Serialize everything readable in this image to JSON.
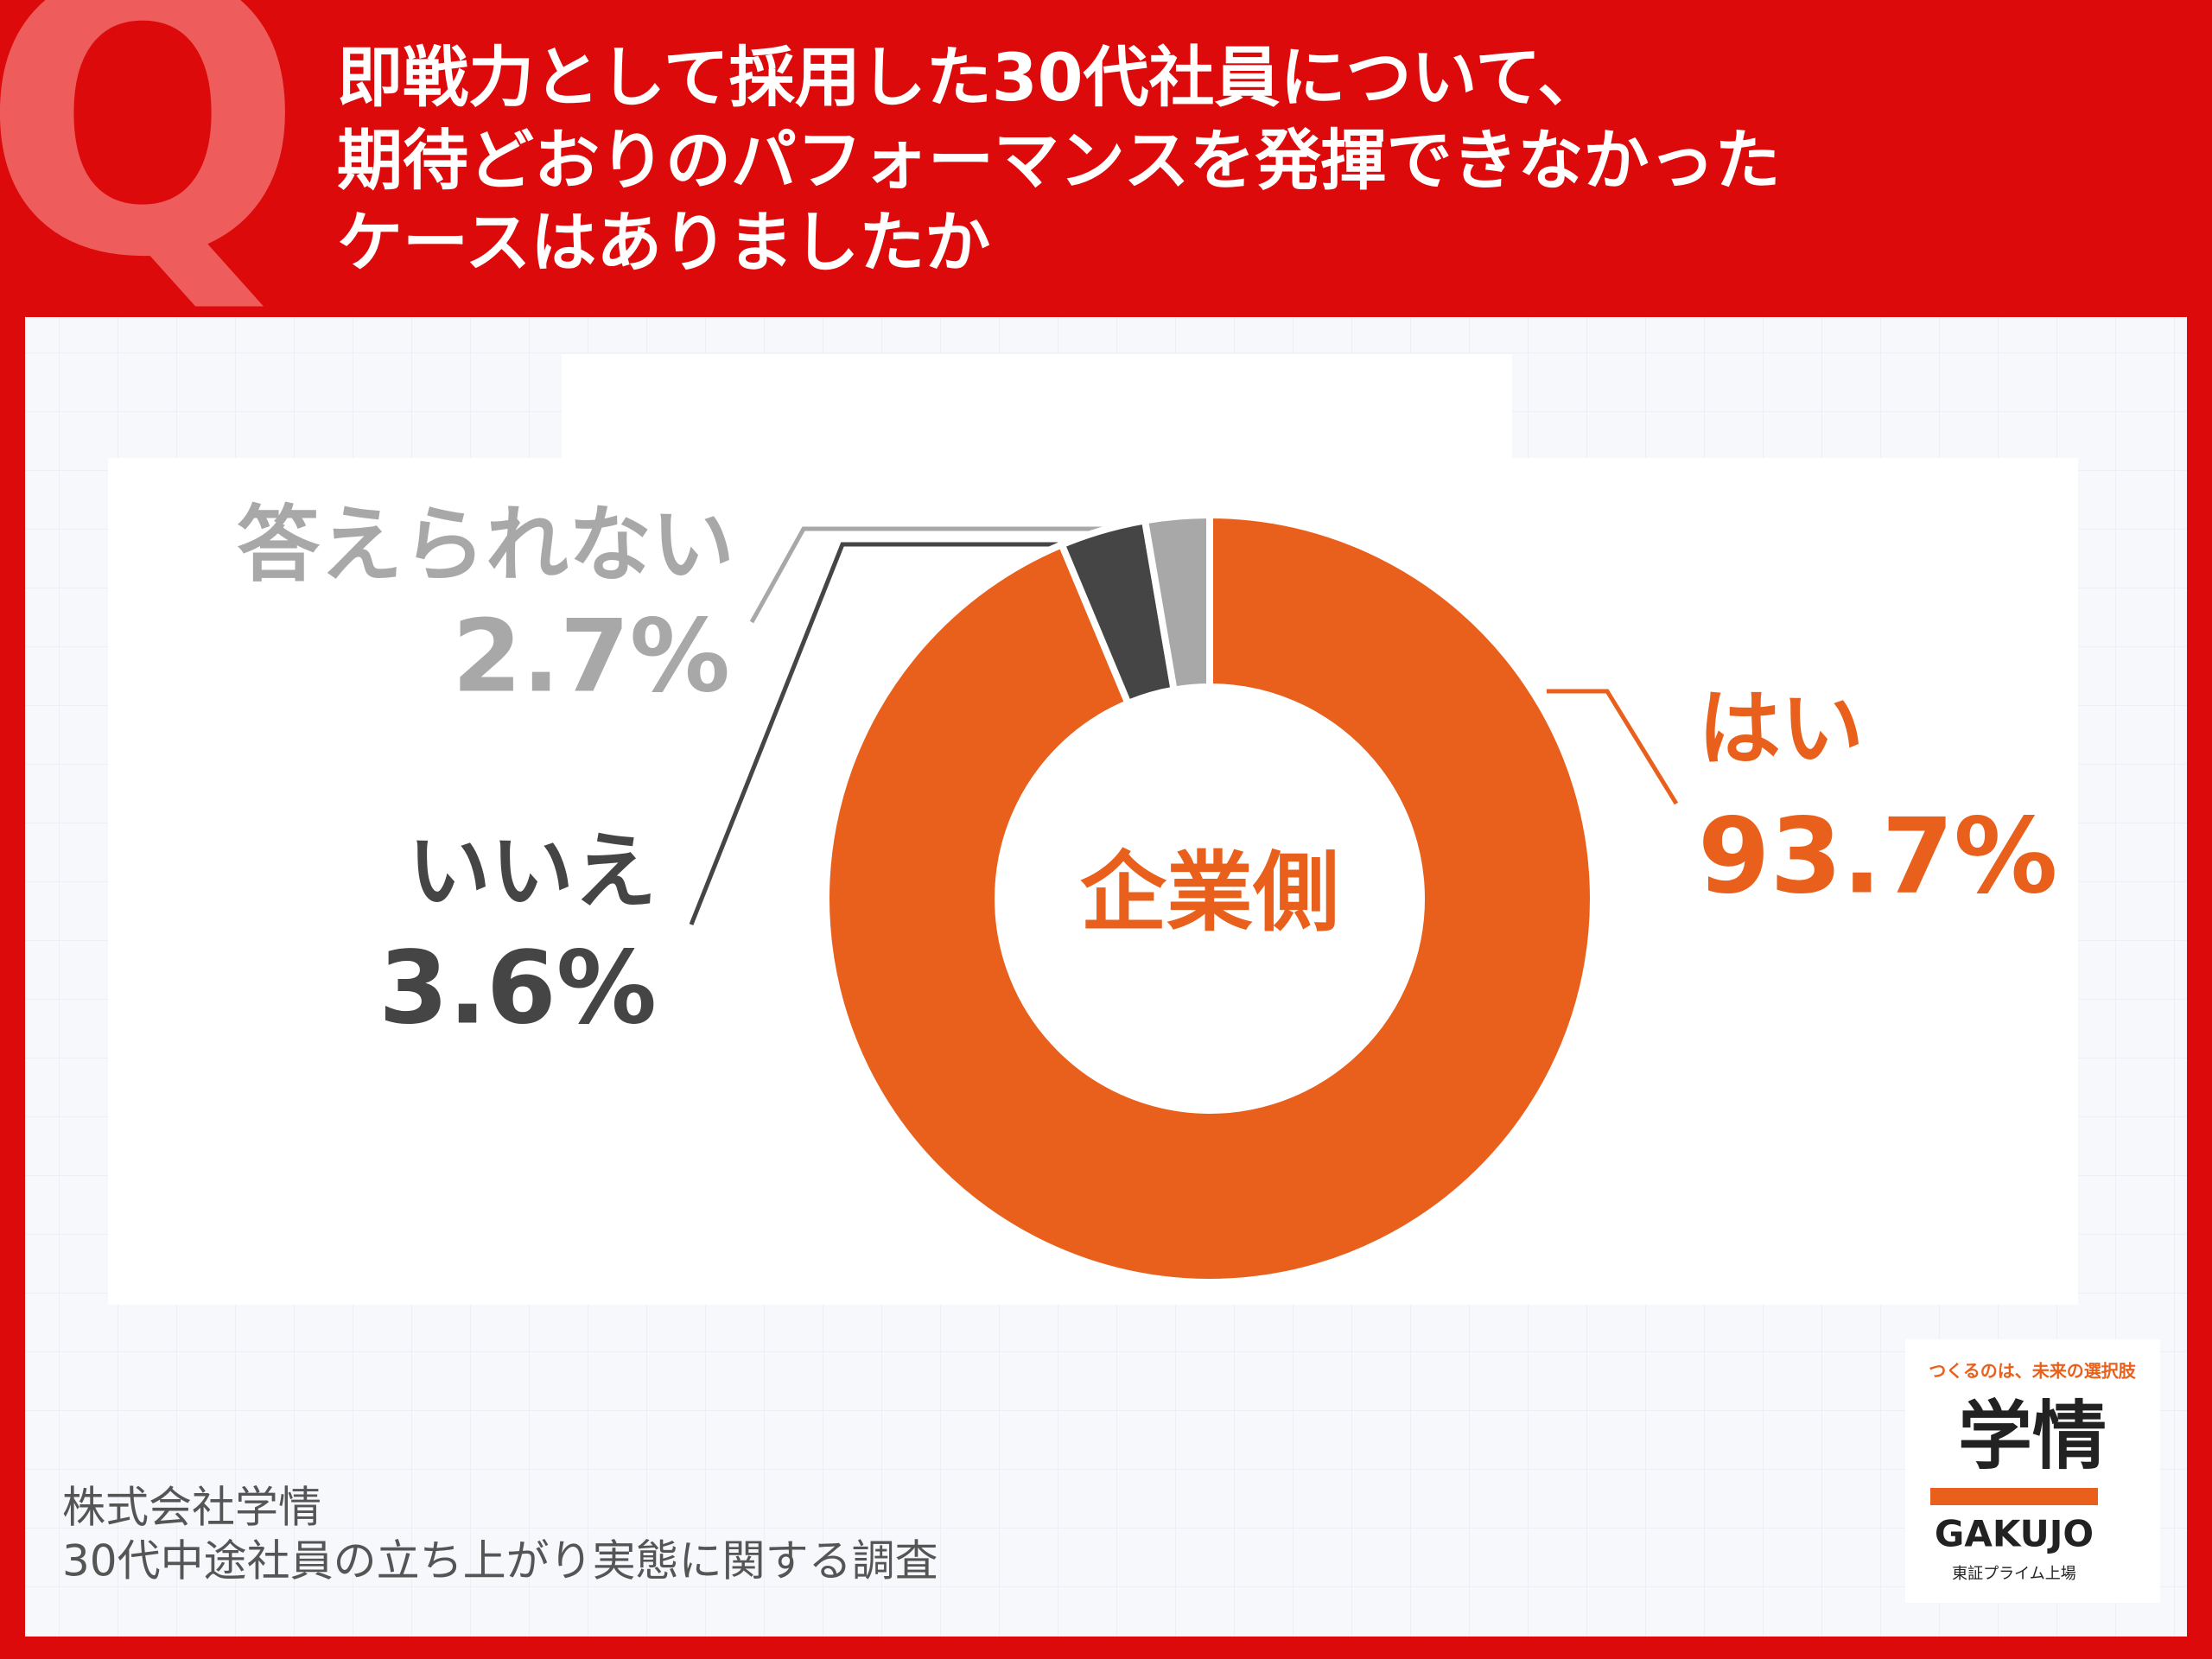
{
  "chart_data": {
    "type": "donut",
    "mark": "Q",
    "title": [
      "即戦力として採用した30代社員について、",
      "期待どおりのパフォーマンスを発揮できなかった",
      "ケースはありましたか"
    ],
    "center_label": "企業側",
    "categories": [
      "はい",
      "いいえ",
      "答えられない"
    ],
    "values": [
      93.7,
      3.6,
      2.7
    ],
    "value_labels": [
      "93.7%",
      "3.6%",
      "2.7%"
    ],
    "colors": [
      "#e8601c",
      "#454545",
      "#a8a8a8"
    ],
    "source": [
      "株式会社学情",
      "30代中途社員の立ち上がり実態に関する調査"
    ],
    "logo": {
      "tagline": "つくるのは、未来の選択肢",
      "name": "学情",
      "roman": "GAKUJO",
      "note": "東証プライム上場"
    }
  }
}
